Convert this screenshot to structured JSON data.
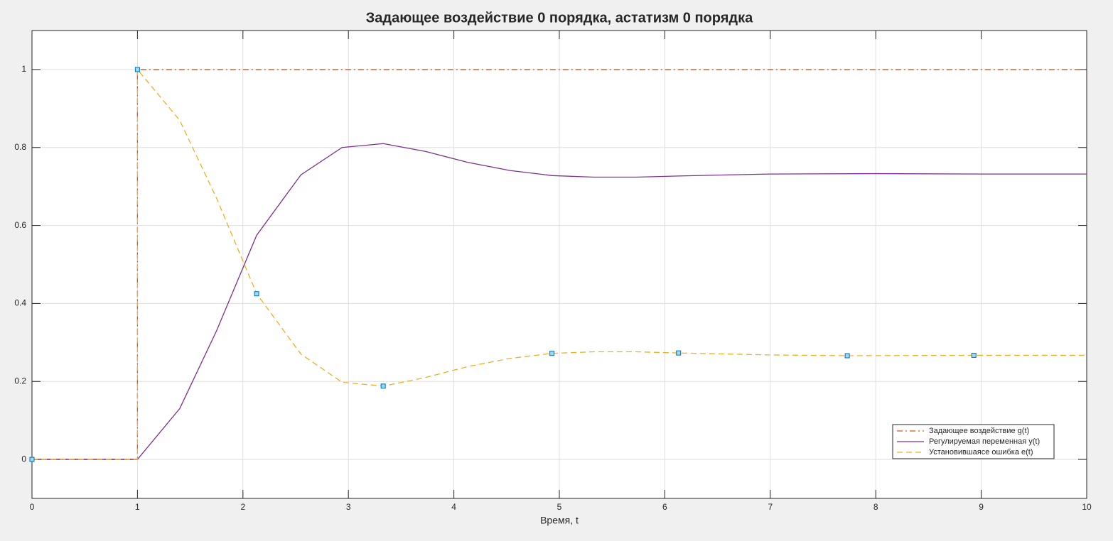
{
  "chart_data": {
    "type": "line",
    "title": "Задающее воздействие 0 порядка, астатизм 0 порядка",
    "xlabel": "Время, t",
    "xlim": [
      0,
      10
    ],
    "ylim": [
      -0.1,
      1.1
    ],
    "xticks": [
      0,
      1,
      2,
      3,
      4,
      5,
      6,
      7,
      8,
      9,
      10
    ],
    "yticks": [
      0,
      0.2,
      0.4,
      0.6,
      0.8,
      1
    ],
    "grid": true,
    "legend_position": "southeast",
    "series": [
      {
        "name": "Задающее воздействие g(t)",
        "color": "#d95319",
        "linestyle": "dashdot",
        "x": [
          0,
          1,
          1,
          10
        ],
        "values": [
          0,
          0,
          1,
          1
        ]
      },
      {
        "name": "Регулируемая переменная y(t)",
        "color": "#7e2f8e",
        "linestyle": "solid",
        "x": [
          0,
          1,
          1.4,
          1.75,
          2.13,
          2.55,
          2.94,
          3.33,
          3.73,
          4.13,
          4.53,
          4.93,
          5.33,
          5.73,
          6.13,
          7,
          8,
          9,
          10
        ],
        "values": [
          0,
          0,
          0.13,
          0.33,
          0.575,
          0.73,
          0.8,
          0.81,
          0.79,
          0.762,
          0.741,
          0.728,
          0.724,
          0.724,
          0.727,
          0.732,
          0.733,
          0.732,
          0.732
        ]
      },
      {
        "name": "Установившаясе ошибка e(t)",
        "color": "#edb120",
        "linestyle": "dashed",
        "x": [
          0,
          1,
          1,
          1.4,
          1.75,
          2.13,
          2.55,
          2.94,
          3.33,
          3.73,
          4.13,
          4.53,
          4.93,
          5.33,
          5.73,
          6.13,
          7,
          7.73,
          8.93,
          10
        ],
        "values": [
          0,
          0,
          1,
          0.87,
          0.67,
          0.425,
          0.27,
          0.198,
          0.188,
          0.21,
          0.238,
          0.259,
          0.272,
          0.276,
          0.276,
          0.273,
          0.268,
          0.266,
          0.267,
          0.267
        ]
      }
    ],
    "data_tips": {
      "color": "#0072bd",
      "fill": "#9fd8f0",
      "x": [
        0,
        1,
        2.13,
        3.33,
        4.93,
        6.13,
        7.73,
        8.93
      ],
      "values": [
        0,
        1,
        0.425,
        0.188,
        0.272,
        0.273,
        0.266,
        0.267
      ]
    }
  }
}
